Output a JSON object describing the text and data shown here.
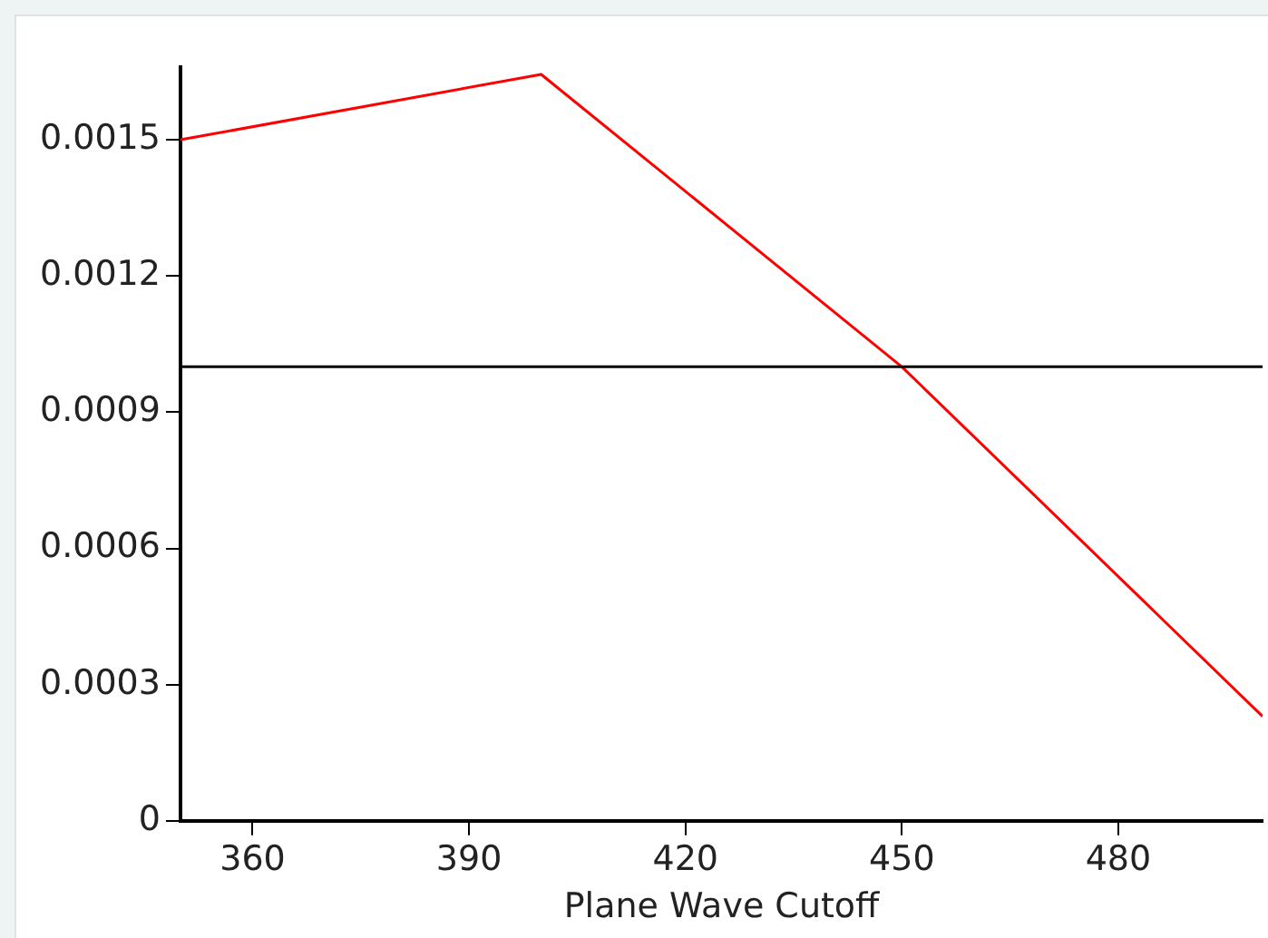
{
  "chart_data": {
    "type": "line",
    "xlabel": "Plane Wave Cutoff",
    "x": [
      350,
      400,
      450,
      500
    ],
    "series": [
      {
        "color": "#ff0000",
        "values": [
          0.0015,
          0.001644,
          0.001,
          0.00023
        ]
      }
    ],
    "xlim": [
      350,
      500
    ],
    "xticks": [
      360,
      390,
      420,
      450,
      480
    ],
    "ylim": [
      0,
      0.00166
    ],
    "yticks": [
      0,
      0.0003,
      0.0006,
      0.0009,
      0.0012,
      0.0015
    ],
    "ref_lines": [
      {
        "axis": "y",
        "value": 0.001,
        "color": "#000000"
      }
    ],
    "grid": false,
    "legend": false,
    "marker": "none",
    "line_style": "solid"
  }
}
